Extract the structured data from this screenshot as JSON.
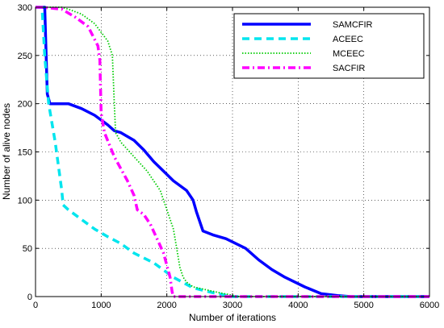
{
  "chart_data": {
    "type": "line",
    "title": "",
    "xlabel": "Number of iterations",
    "ylabel": "Number of alive nodes",
    "xlim": [
      0,
      6000
    ],
    "ylim": [
      0,
      300
    ],
    "xticks": [
      0,
      1000,
      2000,
      3000,
      4000,
      5000,
      6000
    ],
    "yticks": [
      0,
      50,
      100,
      150,
      200,
      250,
      300
    ],
    "grid": true,
    "legend_position": "top-right",
    "series": [
      {
        "name": "SAMCFIR",
        "color": "#0000FF",
        "style": "solid",
        "x": [
          0,
          140,
          180,
          220,
          500,
          700,
          900,
          1100,
          1200,
          1300,
          1500,
          1650,
          1800,
          1950,
          2100,
          2300,
          2400,
          2450,
          2550,
          2700,
          2900,
          3200,
          3400,
          3600,
          3800,
          4100,
          4350,
          4600,
          4800,
          6000
        ],
        "y": [
          300,
          300,
          210,
          200,
          200,
          195,
          188,
          178,
          172,
          170,
          162,
          152,
          140,
          130,
          120,
          110,
          100,
          88,
          68,
          64,
          60,
          50,
          38,
          28,
          20,
          10,
          3,
          1,
          0,
          0
        ]
      },
      {
        "name": "ACEEC",
        "color": "#00E5EE",
        "style": "dashed",
        "x": [
          0,
          100,
          140,
          200,
          300,
          400,
          420,
          500,
          700,
          900,
          1100,
          1300,
          1500,
          1800,
          2100,
          2400,
          2700,
          3000,
          6000
        ],
        "y": [
          300,
          300,
          250,
          200,
          160,
          110,
          95,
          90,
          80,
          70,
          62,
          55,
          45,
          35,
          20,
          9,
          4,
          0,
          0
        ]
      },
      {
        "name": "MCEEC",
        "color": "#00CC00",
        "style": "dotted",
        "x": [
          0,
          400,
          500,
          700,
          900,
          1100,
          1170,
          1200,
          1220,
          1300,
          1500,
          1700,
          1900,
          2000,
          2100,
          2150,
          2200,
          2250,
          2300,
          2400,
          2800,
          3100,
          6000
        ],
        "y": [
          300,
          300,
          298,
          293,
          283,
          265,
          250,
          200,
          170,
          160,
          145,
          130,
          110,
          90,
          70,
          50,
          30,
          20,
          15,
          10,
          4,
          0,
          0
        ]
      },
      {
        "name": "SACFIR",
        "color": "#FF00FF",
        "style": "dashdot",
        "x": [
          0,
          100,
          400,
          600,
          800,
          950,
          980,
          1000,
          1050,
          1200,
          1400,
          1500,
          1550,
          1650,
          1750,
          1850,
          1950,
          2050,
          2080,
          2100,
          6000
        ],
        "y": [
          300,
          300,
          298,
          290,
          280,
          260,
          245,
          190,
          170,
          145,
          120,
          105,
          90,
          85,
          75,
          60,
          45,
          20,
          5,
          0,
          0
        ]
      }
    ]
  }
}
